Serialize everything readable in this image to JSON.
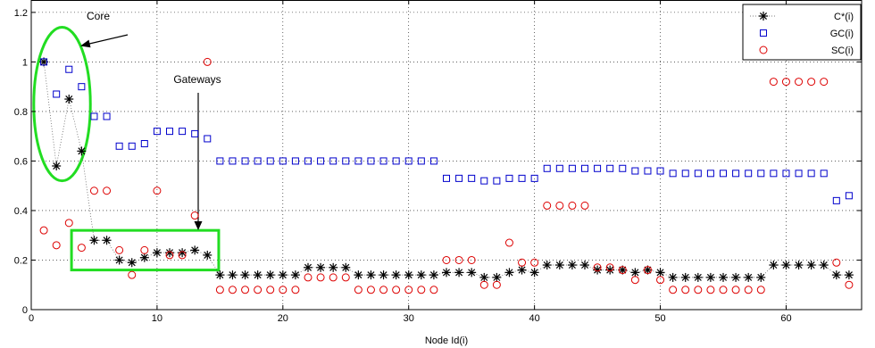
{
  "chart_data": {
    "type": "scatter",
    "title": "",
    "xlabel": "Node Id(i)",
    "ylabel": "",
    "xlim": [
      0,
      66
    ],
    "ylim": [
      0,
      1.25
    ],
    "x_ticks": [
      0,
      10,
      20,
      30,
      40,
      50,
      60
    ],
    "y_ticks": [
      0,
      0.2,
      0.4,
      0.6,
      0.8,
      1,
      1.2
    ],
    "x_tick_labels": [
      "0",
      "10",
      "20",
      "30",
      "40",
      "50",
      "60"
    ],
    "y_tick_labels": [
      "0",
      "0.2",
      "0.4",
      "0.6",
      "0.8",
      "1",
      "1.2"
    ],
    "grid": true,
    "legend_position": "top-right",
    "series": [
      {
        "name": "C*(i)",
        "marker": "asterisk",
        "color": "#000000",
        "dotted_line": true,
        "points": [
          [
            1,
            1.0
          ],
          [
            2,
            0.58
          ],
          [
            3,
            0.85
          ],
          [
            4,
            0.64
          ],
          [
            5,
            0.28
          ],
          [
            6,
            0.28
          ],
          [
            7,
            0.2
          ],
          [
            8,
            0.19
          ],
          [
            9,
            0.21
          ],
          [
            10,
            0.23
          ],
          [
            11,
            0.23
          ],
          [
            12,
            0.23
          ],
          [
            13,
            0.24
          ],
          [
            14,
            0.22
          ],
          [
            15,
            0.14
          ],
          [
            16,
            0.14
          ],
          [
            17,
            0.14
          ],
          [
            18,
            0.14
          ],
          [
            19,
            0.14
          ],
          [
            20,
            0.14
          ],
          [
            21,
            0.14
          ],
          [
            22,
            0.17
          ],
          [
            23,
            0.17
          ],
          [
            24,
            0.17
          ],
          [
            25,
            0.17
          ],
          [
            26,
            0.14
          ],
          [
            27,
            0.14
          ],
          [
            28,
            0.14
          ],
          [
            29,
            0.14
          ],
          [
            30,
            0.14
          ],
          [
            31,
            0.14
          ],
          [
            32,
            0.14
          ],
          [
            33,
            0.15
          ],
          [
            34,
            0.15
          ],
          [
            35,
            0.15
          ],
          [
            36,
            0.13
          ],
          [
            37,
            0.13
          ],
          [
            38,
            0.15
          ],
          [
            39,
            0.16
          ],
          [
            40,
            0.15
          ],
          [
            41,
            0.18
          ],
          [
            42,
            0.18
          ],
          [
            43,
            0.18
          ],
          [
            44,
            0.18
          ],
          [
            45,
            0.16
          ],
          [
            46,
            0.16
          ],
          [
            47,
            0.16
          ],
          [
            48,
            0.15
          ],
          [
            49,
            0.16
          ],
          [
            50,
            0.15
          ],
          [
            51,
            0.13
          ],
          [
            52,
            0.13
          ],
          [
            53,
            0.13
          ],
          [
            54,
            0.13
          ],
          [
            55,
            0.13
          ],
          [
            56,
            0.13
          ],
          [
            57,
            0.13
          ],
          [
            58,
            0.13
          ],
          [
            59,
            0.18
          ],
          [
            60,
            0.18
          ],
          [
            61,
            0.18
          ],
          [
            62,
            0.18
          ],
          [
            63,
            0.18
          ],
          [
            64,
            0.14
          ],
          [
            65,
            0.14
          ]
        ]
      },
      {
        "name": "GC(i)",
        "marker": "square",
        "color": "#0000cc",
        "dotted_line": false,
        "points": [
          [
            1,
            1.0
          ],
          [
            2,
            0.87
          ],
          [
            3,
            0.97
          ],
          [
            4,
            0.9
          ],
          [
            5,
            0.78
          ],
          [
            6,
            0.78
          ],
          [
            7,
            0.66
          ],
          [
            8,
            0.66
          ],
          [
            9,
            0.67
          ],
          [
            10,
            0.72
          ],
          [
            11,
            0.72
          ],
          [
            12,
            0.72
          ],
          [
            13,
            0.71
          ],
          [
            14,
            0.69
          ],
          [
            15,
            0.6
          ],
          [
            16,
            0.6
          ],
          [
            17,
            0.6
          ],
          [
            18,
            0.6
          ],
          [
            19,
            0.6
          ],
          [
            20,
            0.6
          ],
          [
            21,
            0.6
          ],
          [
            22,
            0.6
          ],
          [
            23,
            0.6
          ],
          [
            24,
            0.6
          ],
          [
            25,
            0.6
          ],
          [
            26,
            0.6
          ],
          [
            27,
            0.6
          ],
          [
            28,
            0.6
          ],
          [
            29,
            0.6
          ],
          [
            30,
            0.6
          ],
          [
            31,
            0.6
          ],
          [
            32,
            0.6
          ],
          [
            33,
            0.53
          ],
          [
            34,
            0.53
          ],
          [
            35,
            0.53
          ],
          [
            36,
            0.52
          ],
          [
            37,
            0.52
          ],
          [
            38,
            0.53
          ],
          [
            39,
            0.53
          ],
          [
            40,
            0.53
          ],
          [
            41,
            0.57
          ],
          [
            42,
            0.57
          ],
          [
            43,
            0.57
          ],
          [
            44,
            0.57
          ],
          [
            45,
            0.57
          ],
          [
            46,
            0.57
          ],
          [
            47,
            0.57
          ],
          [
            48,
            0.56
          ],
          [
            49,
            0.56
          ],
          [
            50,
            0.56
          ],
          [
            51,
            0.55
          ],
          [
            52,
            0.55
          ],
          [
            53,
            0.55
          ],
          [
            54,
            0.55
          ],
          [
            55,
            0.55
          ],
          [
            56,
            0.55
          ],
          [
            57,
            0.55
          ],
          [
            58,
            0.55
          ],
          [
            59,
            0.55
          ],
          [
            60,
            0.55
          ],
          [
            61,
            0.55
          ],
          [
            62,
            0.55
          ],
          [
            63,
            0.55
          ],
          [
            64,
            0.44
          ],
          [
            65,
            0.46
          ]
        ]
      },
      {
        "name": "SC(i)",
        "marker": "circle",
        "color": "#dd0000",
        "dotted_line": false,
        "points": [
          [
            1,
            0.32
          ],
          [
            2,
            0.26
          ],
          [
            3,
            0.35
          ],
          [
            4,
            0.25
          ],
          [
            5,
            0.48
          ],
          [
            6,
            0.48
          ],
          [
            7,
            0.24
          ],
          [
            8,
            0.14
          ],
          [
            9,
            0.24
          ],
          [
            10,
            0.48
          ],
          [
            11,
            0.22
          ],
          [
            12,
            0.22
          ],
          [
            13,
            0.38
          ],
          [
            14,
            1.0
          ],
          [
            15,
            0.08
          ],
          [
            16,
            0.08
          ],
          [
            17,
            0.08
          ],
          [
            18,
            0.08
          ],
          [
            19,
            0.08
          ],
          [
            20,
            0.08
          ],
          [
            21,
            0.08
          ],
          [
            22,
            0.13
          ],
          [
            23,
            0.13
          ],
          [
            24,
            0.13
          ],
          [
            25,
            0.13
          ],
          [
            26,
            0.08
          ],
          [
            27,
            0.08
          ],
          [
            28,
            0.08
          ],
          [
            29,
            0.08
          ],
          [
            30,
            0.08
          ],
          [
            31,
            0.08
          ],
          [
            32,
            0.08
          ],
          [
            33,
            0.2
          ],
          [
            34,
            0.2
          ],
          [
            35,
            0.2
          ],
          [
            36,
            0.1
          ],
          [
            37,
            0.1
          ],
          [
            38,
            0.27
          ],
          [
            39,
            0.19
          ],
          [
            40,
            0.19
          ],
          [
            41,
            0.42
          ],
          [
            42,
            0.42
          ],
          [
            43,
            0.42
          ],
          [
            44,
            0.42
          ],
          [
            45,
            0.17
          ],
          [
            46,
            0.17
          ],
          [
            47,
            0.16
          ],
          [
            48,
            0.12
          ],
          [
            49,
            0.16
          ],
          [
            50,
            0.12
          ],
          [
            51,
            0.08
          ],
          [
            52,
            0.08
          ],
          [
            53,
            0.08
          ],
          [
            54,
            0.08
          ],
          [
            55,
            0.08
          ],
          [
            56,
            0.08
          ],
          [
            57,
            0.08
          ],
          [
            58,
            0.08
          ],
          [
            59,
            0.92
          ],
          [
            60,
            0.92
          ],
          [
            61,
            0.92
          ],
          [
            62,
            0.92
          ],
          [
            63,
            0.92
          ],
          [
            64,
            0.19
          ],
          [
            65,
            0.1
          ]
        ]
      }
    ],
    "annotations": [
      {
        "text": "Core",
        "shape": "ellipse",
        "region_x": [
          0.2,
          4.7
        ],
        "region_y": [
          0.52,
          1.14
        ],
        "color": "#22dd22"
      },
      {
        "text": "Gateways",
        "shape": "rectangle",
        "region_x": [
          3.2,
          14.9
        ],
        "region_y": [
          0.16,
          0.32
        ],
        "color": "#22dd22"
      }
    ]
  }
}
